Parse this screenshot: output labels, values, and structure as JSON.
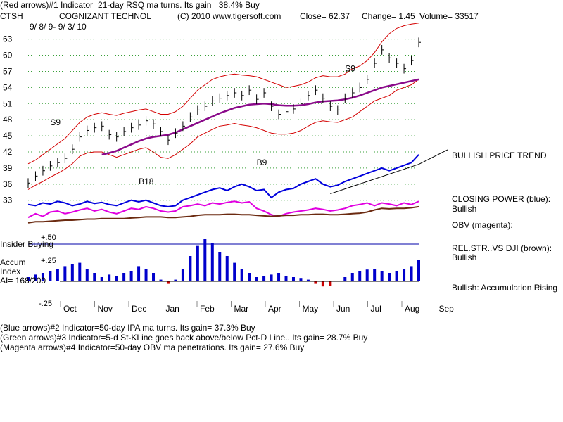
{
  "header": {
    "line1": "(Red arrows)#1 Indicator=21-day RSQ ma turns. Its gain= 38.4% Buy",
    "ticker": "CTSH",
    "company": "COGNIZANT TECHNOL",
    "copyright": "(C) 2010 www.tigersoft.com",
    "close": "Close=  62.37",
    "change": "Change= 1.45",
    "volume": "Volume= 33517",
    "daterange": "9/ 8/ 9- 9/ 3/ 10"
  },
  "footer": {
    "line1": "(Blue arrows)#2 Indicator=50-day IPA ma turns. Its gain= 37.3% Buy",
    "line2": "(Green arrows)#3 Indicator=5-d St-KLine goes back above/below Pct-D Line.. Its gain= 28.7% Buy",
    "line3": "(Magenta arrows)#4 Indicator=50-day OBV ma penetrations. Its gain= 27.6% Buy"
  },
  "side_labels": {
    "bullish_trend": "BULLISH PRICE TREND",
    "closing_power": "CLOSING POWER (blue):",
    "closing_power_val": "Bullish",
    "obv": "OBV (magenta):",
    "relstr": "REL.STR..VS DJI (brown):",
    "relstr_val": "Bullish",
    "accum_val": "Bullish: Accumulation Rising"
  },
  "panel_labels": {
    "insider": "Insider Buying",
    "plus50": "+.50",
    "plus25": "+.25",
    "accum1": "Accum",
    "accum2": "Index",
    "ai": "AI= 168/200",
    "minus25": "-.25"
  },
  "annotations": [
    {
      "text": "S9",
      "x": "Oct",
      "y": 47
    },
    {
      "text": "B18",
      "x": "Feb",
      "y": 36
    },
    {
      "text": "B9",
      "x": "May",
      "y": 39.5
    },
    {
      "text": "S9",
      "x": "Jul",
      "y": 57
    }
  ],
  "colors": {
    "price": "#000000",
    "bands": "#d40000",
    "ma": "#8a0a8a",
    "closing_power": "#0000dd",
    "obv": "#e000e0",
    "relstr": "#6b2a10",
    "accum_pos": "#0000cc",
    "accum_neg": "#cc0000",
    "arrow_red": "#e00000",
    "grid": "#3aa03a"
  },
  "chart_data": {
    "type": "line",
    "yticks": [
      33,
      36,
      39,
      42,
      45,
      48,
      51,
      54,
      57,
      60,
      63
    ],
    "ylim": [
      31,
      64
    ],
    "months": [
      "Oct",
      "Nov",
      "Dec",
      "Jan",
      "Feb",
      "Mar",
      "Apr",
      "May",
      "Jun",
      "Jul",
      "Aug",
      "Sep"
    ],
    "price_close": [
      36.2,
      37.5,
      38.5,
      39.4,
      40.0,
      40.8,
      42.5,
      44.8,
      46.0,
      46.5,
      46.8,
      45.2,
      44.8,
      45.8,
      46.5,
      47.0,
      47.8,
      47.2,
      45.8,
      44.2,
      45.5,
      46.8,
      48.5,
      49.8,
      50.5,
      51.5,
      52.0,
      52.5,
      53.0,
      52.5,
      53.5,
      51.8,
      53.0,
      50.5,
      49.0,
      49.5,
      50.0,
      51.0,
      52.5,
      53.5,
      52.0,
      50.5,
      49.8,
      52.0,
      53.0,
      54.0,
      55.5,
      58.5,
      61.0,
      59.5,
      58.5,
      57.5,
      59.0,
      62.4
    ],
    "ma50": [
      null,
      null,
      null,
      null,
      null,
      null,
      null,
      null,
      null,
      null,
      41.5,
      41.8,
      42.2,
      42.8,
      43.4,
      44.0,
      44.5,
      44.8,
      45.0,
      45.2,
      45.6,
      46.2,
      46.8,
      47.4,
      48.0,
      48.6,
      49.2,
      49.7,
      50.2,
      50.5,
      50.8,
      50.9,
      51.0,
      50.9,
      50.7,
      50.6,
      50.6,
      50.7,
      50.9,
      51.2,
      51.4,
      51.5,
      51.6,
      51.8,
      52.1,
      52.5,
      53.0,
      53.5,
      54.0,
      54.3,
      54.6,
      54.9,
      55.2,
      55.5
    ],
    "upper_band": [
      39.8,
      40.5,
      41.5,
      42.5,
      43.5,
      44.5,
      46.0,
      47.5,
      48.5,
      49.0,
      49.3,
      49.0,
      48.8,
      49.2,
      49.5,
      49.8,
      50.0,
      49.5,
      49.0,
      49.0,
      49.5,
      50.5,
      52.0,
      53.5,
      54.5,
      55.5,
      56.0,
      56.3,
      56.5,
      56.3,
      56.2,
      56.0,
      55.5,
      55.0,
      54.5,
      54.0,
      54.2,
      54.5,
      55.0,
      55.8,
      56.2,
      56.0,
      56.0,
      56.5,
      57.5,
      58.0,
      59.0,
      60.5,
      62.5,
      64.0,
      65.0,
      65.5,
      65.8,
      66.0
    ],
    "lower_band": [
      35.0,
      35.8,
      36.5,
      37.3,
      38.0,
      38.8,
      39.8,
      41.2,
      41.8,
      42.0,
      42.0,
      41.5,
      41.0,
      41.5,
      42.0,
      42.5,
      42.8,
      42.0,
      41.0,
      40.8,
      41.5,
      42.5,
      43.5,
      44.8,
      45.5,
      46.2,
      46.8,
      47.0,
      47.3,
      47.0,
      46.8,
      46.5,
      46.0,
      45.5,
      45.3,
      45.3,
      45.5,
      46.0,
      46.8,
      47.5,
      47.8,
      47.6,
      47.5,
      48.0,
      48.5,
      49.5,
      50.5,
      51.5,
      52.0,
      52.5,
      53.5,
      54.0,
      54.5,
      55.5
    ],
    "closing_power": [
      32.2,
      32.0,
      32.5,
      32.3,
      32.8,
      32.5,
      32.0,
      32.3,
      32.8,
      32.4,
      32.6,
      32.2,
      32.0,
      32.5,
      33.0,
      32.7,
      33.0,
      32.5,
      32.0,
      31.8,
      32.0,
      33.0,
      33.5,
      34.0,
      34.5,
      35.0,
      35.3,
      34.8,
      35.5,
      36.0,
      35.5,
      34.8,
      35.0,
      33.5,
      34.5,
      35.0,
      35.2,
      36.0,
      36.5,
      37.0,
      36.0,
      35.5,
      35.8,
      36.5,
      37.0,
      37.5,
      38.0,
      38.5,
      39.0,
      38.5,
      39.0,
      39.5,
      40.0,
      41.5
    ],
    "obv": [
      29.8,
      30.5,
      30.0,
      30.8,
      31.0,
      30.5,
      30.8,
      31.2,
      31.5,
      31.0,
      31.3,
      30.8,
      30.5,
      31.0,
      31.5,
      31.3,
      31.8,
      31.5,
      31.0,
      30.8,
      31.0,
      31.8,
      32.0,
      32.3,
      32.0,
      32.5,
      32.3,
      32.6,
      32.8,
      32.5,
      32.7,
      31.5,
      31.0,
      30.3,
      30.0,
      30.5,
      30.8,
      31.0,
      31.2,
      31.5,
      31.3,
      31.0,
      31.2,
      31.5,
      32.0,
      32.2,
      32.5,
      32.0,
      32.5,
      32.3,
      32.0,
      32.5,
      32.2,
      32.8
    ],
    "relstr": [
      28.8,
      29.0,
      29.0,
      29.1,
      29.2,
      29.3,
      29.3,
      29.4,
      29.5,
      29.5,
      29.6,
      29.6,
      29.6,
      29.6,
      29.7,
      29.8,
      29.9,
      29.9,
      29.9,
      29.8,
      29.8,
      29.9,
      30.0,
      30.2,
      30.3,
      30.3,
      30.3,
      30.4,
      30.4,
      30.3,
      30.3,
      30.2,
      30.1,
      30.0,
      30.1,
      30.2,
      30.2,
      30.3,
      30.3,
      30.4,
      30.4,
      30.3,
      30.3,
      30.4,
      30.5,
      30.6,
      30.8,
      31.2,
      31.5,
      31.4,
      31.5,
      31.5,
      31.6,
      31.8
    ],
    "accum_index": [
      0.05,
      0.08,
      0.1,
      0.12,
      0.15,
      0.18,
      0.2,
      0.22,
      0.15,
      0.1,
      0.05,
      0.08,
      0.06,
      0.1,
      0.12,
      0.18,
      0.15,
      0.1,
      0.02,
      -0.03,
      0.02,
      0.15,
      0.3,
      0.42,
      0.5,
      0.45,
      0.35,
      0.3,
      0.22,
      0.15,
      0.1,
      0.05,
      0.06,
      0.08,
      0.1,
      0.06,
      0.05,
      0.04,
      0.02,
      -0.03,
      -0.06,
      -0.05,
      0.0,
      0.05,
      0.1,
      0.12,
      0.14,
      0.15,
      0.12,
      0.1,
      0.12,
      0.15,
      0.18,
      0.25
    ]
  }
}
